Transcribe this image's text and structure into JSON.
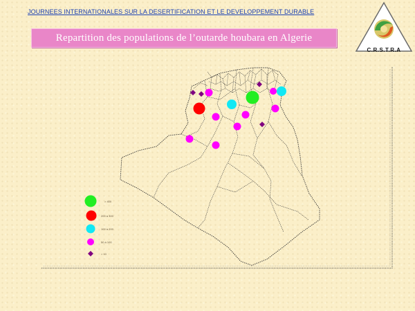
{
  "header": {
    "link_text": "JOURNEES INTERNATIONALES  SUR LA DESERTIFICATION  ET LE DEVELOPPEMENT DURABLE"
  },
  "title": "Repartition des populations de l’outarde houbara en Algerie",
  "logo": {
    "text": "C.R.S.T.R.A"
  },
  "colors": {
    "green": "#22ee22",
    "red": "#ff0000",
    "cyan": "#11e8f4",
    "magenta": "#ff00ff",
    "purple": "#800080",
    "title_bg": "#e986c8"
  },
  "legend": [
    {
      "category": "green",
      "label": "> 400"
    },
    {
      "category": "red",
      "label": "200 à 300"
    },
    {
      "category": "cyan",
      "label": "100 à 200"
    },
    {
      "category": "magenta",
      "label": "50 à 100"
    },
    {
      "category": "purple",
      "label": "> 10"
    }
  ]
}
